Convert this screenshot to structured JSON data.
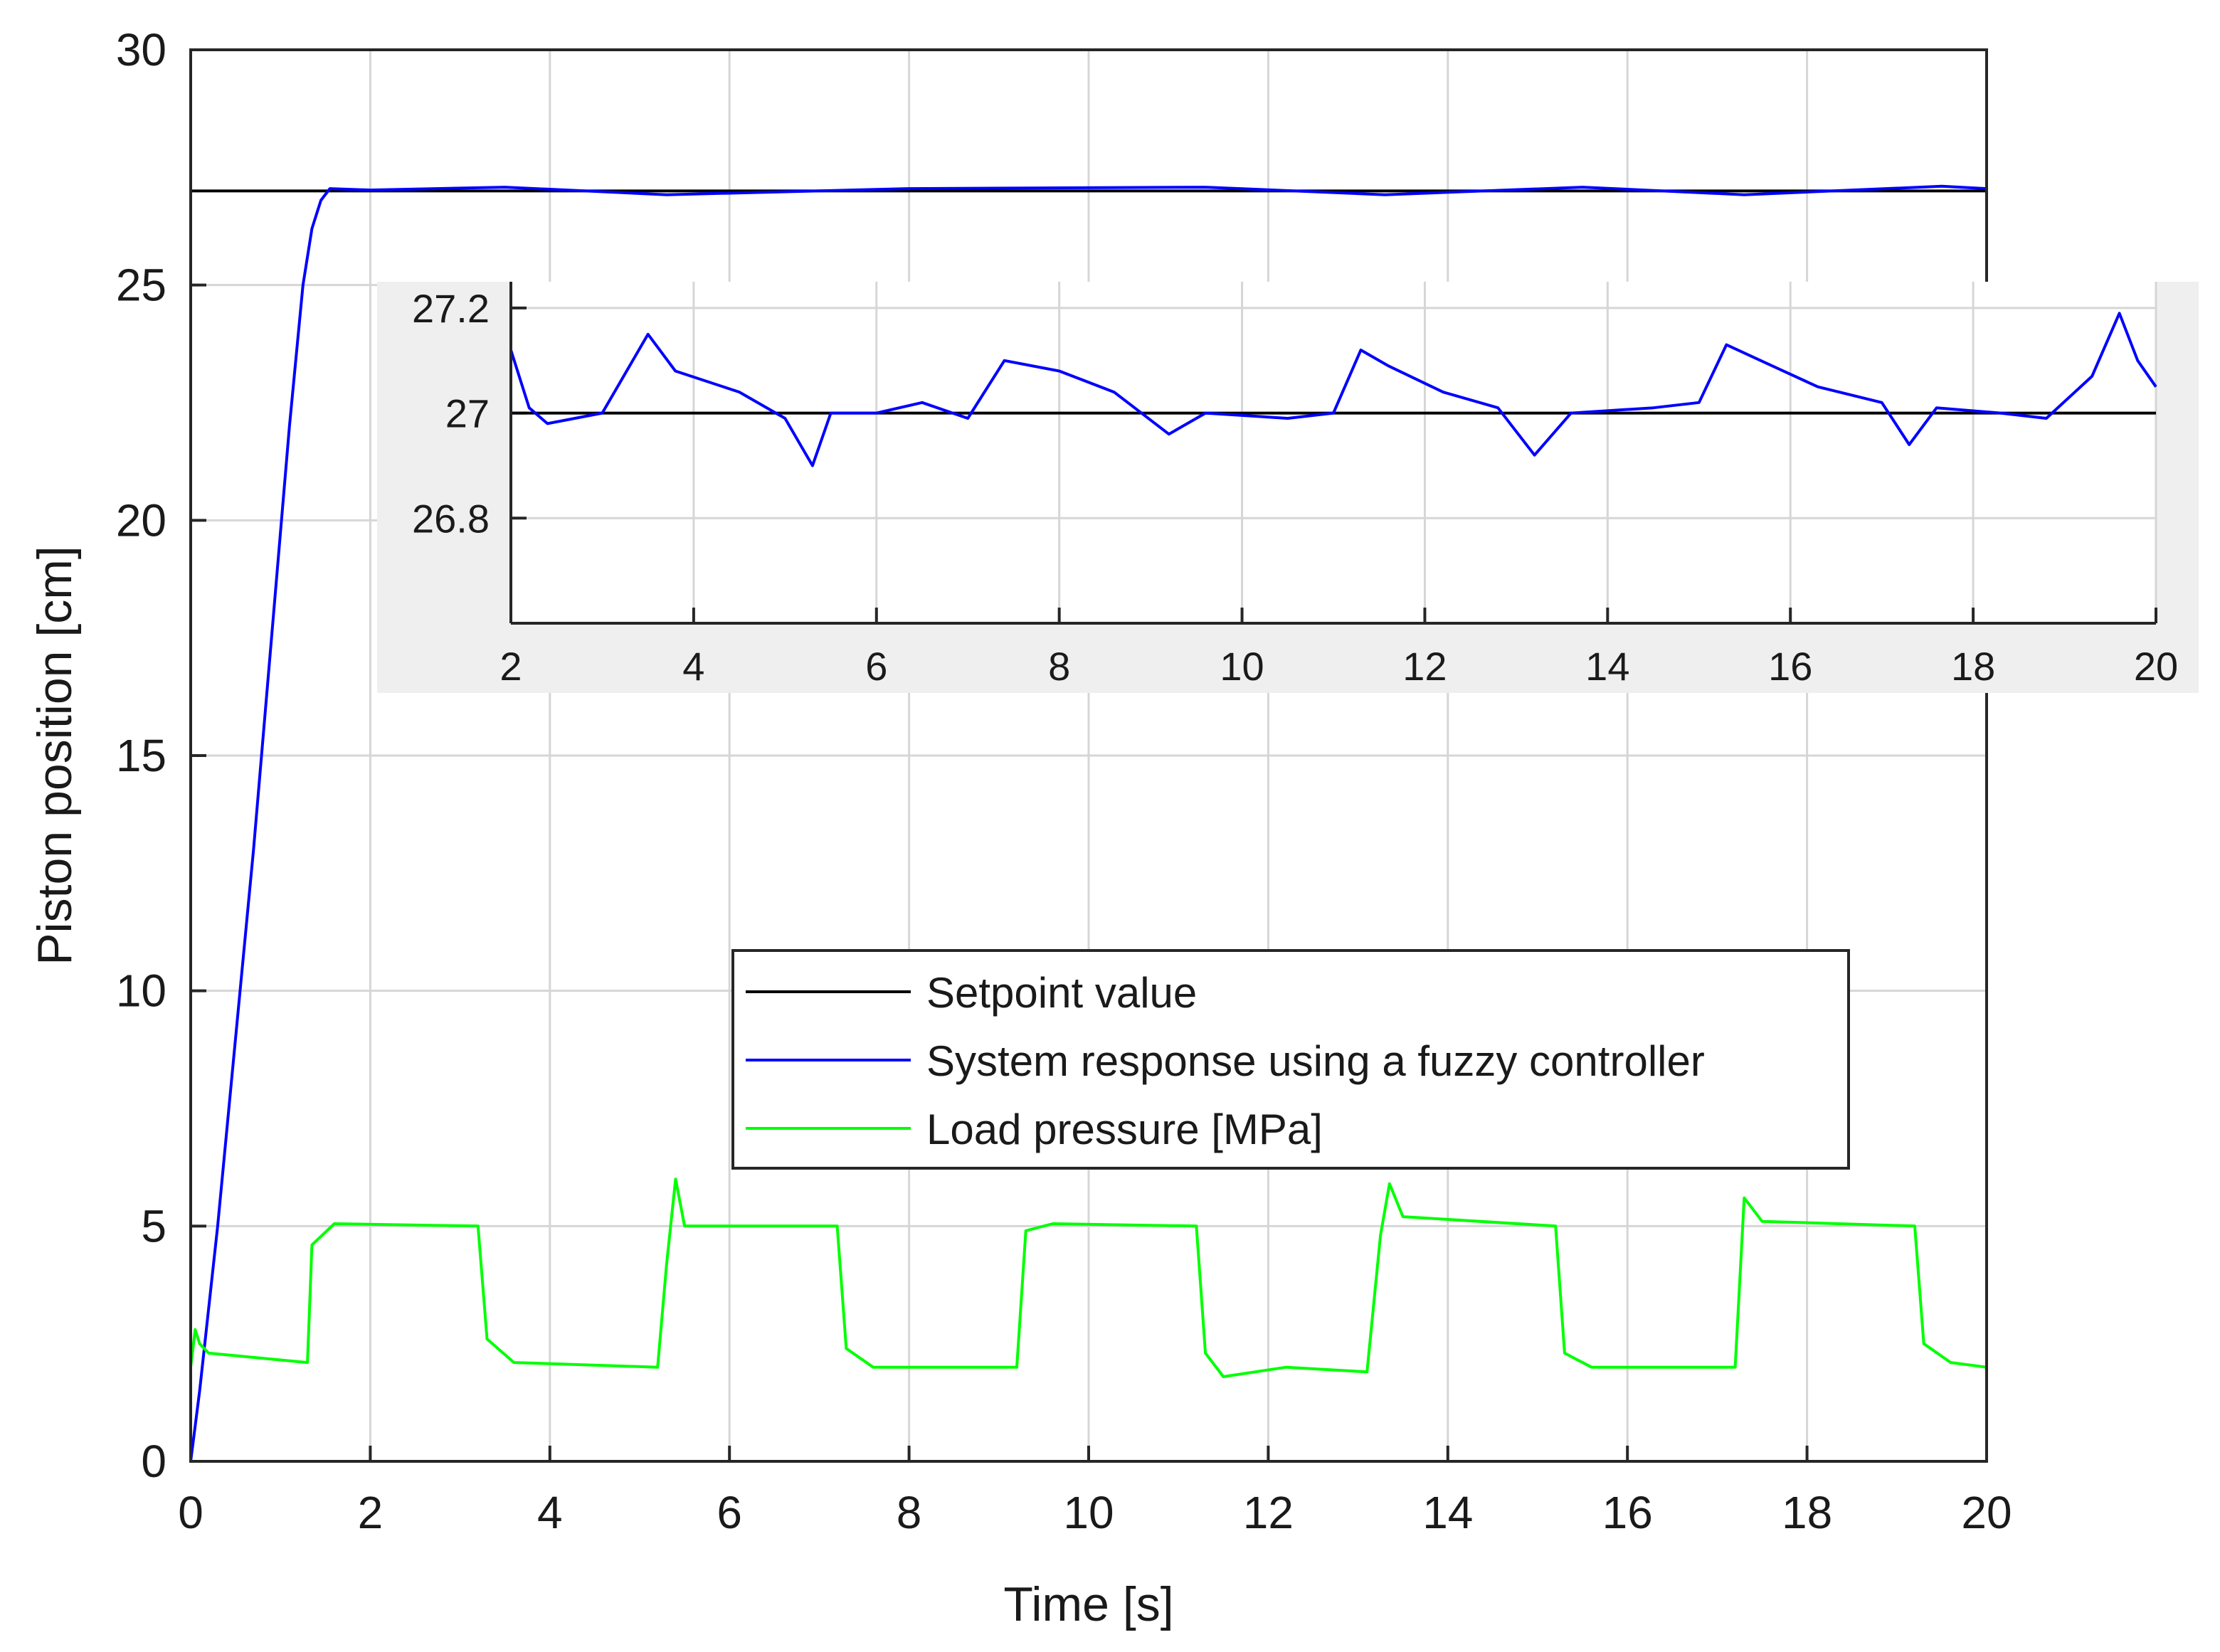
{
  "chart_data": [
    {
      "type": "line",
      "title": "",
      "xlabel": "Time [s]",
      "ylabel": "Piston position [cm]",
      "xlim": [
        0,
        20
      ],
      "ylim": [
        0,
        30
      ],
      "grid": true,
      "x_ticks": [
        "0",
        "2",
        "4",
        "6",
        "8",
        "10",
        "12",
        "14",
        "16",
        "18",
        "20"
      ],
      "y_ticks": [
        "0",
        "5",
        "10",
        "15",
        "20",
        "25",
        "30"
      ],
      "legend": {
        "placement": "center-right",
        "entries": [
          {
            "label": "Setpoint value",
            "color": "#000000"
          },
          {
            "label": "System response using a fuzzy controller",
            "color": "#0000ff"
          },
          {
            "label": "Load pressure [MPa]",
            "color": "#00ff00"
          }
        ]
      },
      "series": [
        {
          "name": "Setpoint value",
          "color": "#000000",
          "points": [
            [
              0,
              27
            ],
            [
              20,
              27
            ]
          ]
        },
        {
          "name": "System response using a fuzzy controller",
          "color": "#0000ff",
          "points": [
            [
              0,
              0
            ],
            [
              0.1,
              1.5
            ],
            [
              0.3,
              5
            ],
            [
              0.5,
              9
            ],
            [
              0.7,
              13
            ],
            [
              0.9,
              17.5
            ],
            [
              1.1,
              22
            ],
            [
              1.25,
              25
            ],
            [
              1.35,
              26.2
            ],
            [
              1.45,
              26.8
            ],
            [
              1.55,
              27.05
            ],
            [
              2,
              27.02
            ],
            [
              3.5,
              27.08
            ],
            [
              5.3,
              26.92
            ],
            [
              8,
              27.05
            ],
            [
              11.3,
              27.08
            ],
            [
              13.3,
              26.92
            ],
            [
              15.5,
              27.08
            ],
            [
              17.3,
              26.92
            ],
            [
              19.5,
              27.1
            ],
            [
              20,
              27.05
            ]
          ]
        },
        {
          "name": "Load pressure [MPa]",
          "color": "#00ff00",
          "points": [
            [
              0,
              2
            ],
            [
              0.05,
              2.8
            ],
            [
              0.1,
              2.5
            ],
            [
              0.2,
              2.3
            ],
            [
              1.3,
              2.1
            ],
            [
              1.35,
              4.6
            ],
            [
              1.6,
              5.05
            ],
            [
              3.2,
              5
            ],
            [
              3.3,
              2.6
            ],
            [
              3.6,
              2.1
            ],
            [
              5.2,
              2
            ],
            [
              5.3,
              4.2
            ],
            [
              5.4,
              6
            ],
            [
              5.5,
              5
            ],
            [
              7.2,
              5
            ],
            [
              7.3,
              2.4
            ],
            [
              7.6,
              2
            ],
            [
              9.2,
              2
            ],
            [
              9.3,
              4.9
            ],
            [
              9.6,
              5.05
            ],
            [
              11.2,
              5
            ],
            [
              11.3,
              2.3
            ],
            [
              11.5,
              1.8
            ],
            [
              12.2,
              2.0
            ],
            [
              13.1,
              1.9
            ],
            [
              13.25,
              4.8
            ],
            [
              13.35,
              5.9
            ],
            [
              13.5,
              5.2
            ],
            [
              15.2,
              5
            ],
            [
              15.3,
              2.3
            ],
            [
              15.6,
              2
            ],
            [
              17.2,
              2
            ],
            [
              17.3,
              5.6
            ],
            [
              17.5,
              5.1
            ],
            [
              19.2,
              5
            ],
            [
              19.3,
              2.5
            ],
            [
              19.6,
              2.1
            ],
            [
              20,
              2
            ]
          ]
        }
      ]
    },
    {
      "type": "line",
      "title": "",
      "xlabel": "",
      "ylabel": "",
      "xlim": [
        2,
        20
      ],
      "ylim": [
        26.6,
        27.25
      ],
      "grid": true,
      "x_ticks": [
        "2",
        "4",
        "6",
        "8",
        "10",
        "12",
        "14",
        "16",
        "18",
        "20"
      ],
      "y_ticks": [
        "26.8",
        "27",
        "27.2"
      ],
      "series": [
        {
          "name": "Setpoint value",
          "color": "#000000",
          "points": [
            [
              2,
              27
            ],
            [
              20,
              27
            ]
          ]
        },
        {
          "name": "System response using a fuzzy controller",
          "color": "#0000ff",
          "points": [
            [
              2,
              27.12
            ],
            [
              2.2,
              27.01
            ],
            [
              2.4,
              26.98
            ],
            [
              3.0,
              27.0
            ],
            [
              3.5,
              27.15
            ],
            [
              3.8,
              27.08
            ],
            [
              4.5,
              27.04
            ],
            [
              5.0,
              26.99
            ],
            [
              5.3,
              26.9
            ],
            [
              5.5,
              27.0
            ],
            [
              6.0,
              27.0
            ],
            [
              6.5,
              27.02
            ],
            [
              7.0,
              26.99
            ],
            [
              7.4,
              27.1
            ],
            [
              8.0,
              27.08
            ],
            [
              8.6,
              27.04
            ],
            [
              9.2,
              26.96
            ],
            [
              9.6,
              27.0
            ],
            [
              10.5,
              26.99
            ],
            [
              11.0,
              27.0
            ],
            [
              11.3,
              27.12
            ],
            [
              11.6,
              27.09
            ],
            [
              12.2,
              27.04
            ],
            [
              12.8,
              27.01
            ],
            [
              13.2,
              26.92
            ],
            [
              13.6,
              27.0
            ],
            [
              14.5,
              27.01
            ],
            [
              15.0,
              27.02
            ],
            [
              15.3,
              27.13
            ],
            [
              15.8,
              27.09
            ],
            [
              16.3,
              27.05
            ],
            [
              17.0,
              27.02
            ],
            [
              17.3,
              26.94
            ],
            [
              17.6,
              27.01
            ],
            [
              18.3,
              27.0
            ],
            [
              18.8,
              26.99
            ],
            [
              19.3,
              27.07
            ],
            [
              19.6,
              27.19
            ],
            [
              19.8,
              27.1
            ],
            [
              20.0,
              27.05
            ]
          ]
        }
      ]
    }
  ]
}
